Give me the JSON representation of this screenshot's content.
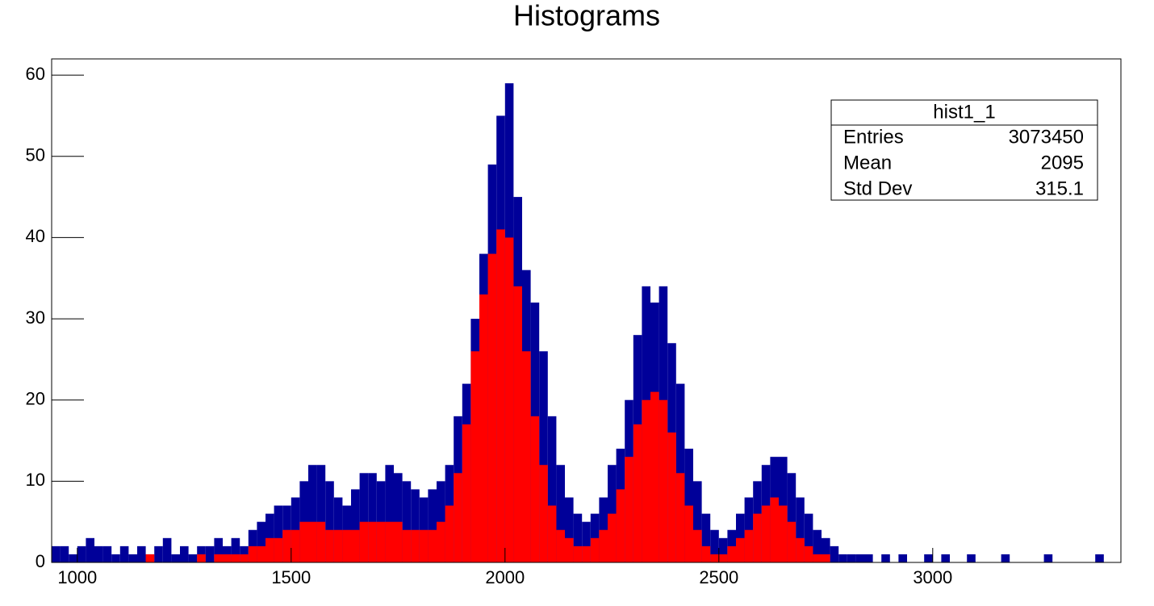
{
  "chart_data": {
    "type": "histogram",
    "title": "Histograms",
    "bins": [
      940,
      960,
      980,
      1000,
      1020,
      1040,
      1060,
      1080,
      1100,
      1120,
      1140,
      1160,
      1180,
      1200,
      1220,
      1240,
      1260,
      1280,
      1300,
      1320,
      1340,
      1360,
      1380,
      1400,
      1420,
      1440,
      1460,
      1480,
      1500,
      1520,
      1540,
      1560,
      1580,
      1600,
      1620,
      1640,
      1660,
      1680,
      1700,
      1720,
      1740,
      1760,
      1780,
      1800,
      1820,
      1840,
      1860,
      1880,
      1900,
      1920,
      1940,
      1960,
      1980,
      2000,
      2020,
      2040,
      2060,
      2080,
      2100,
      2120,
      2140,
      2160,
      2180,
      2200,
      2220,
      2240,
      2260,
      2280,
      2300,
      2320,
      2340,
      2360,
      2380,
      2400,
      2420,
      2440,
      2460,
      2480,
      2500,
      2520,
      2540,
      2560,
      2580,
      2600,
      2620,
      2640,
      2660,
      2680,
      2700,
      2720,
      2740,
      2760,
      2780,
      2800,
      2820,
      2840,
      2860,
      2880,
      2900,
      2920,
      2940,
      2960,
      2980,
      3000,
      3020,
      3040,
      3060,
      3080,
      3100,
      3120,
      3140,
      3160,
      3180,
      3200,
      3220,
      3240,
      3260,
      3280,
      3300,
      3320,
      3340,
      3360,
      3380,
      3400,
      3420,
      3440
    ],
    "series": [
      {
        "color": "#000099",
        "values": [
          2,
          2,
          1,
          2,
          3,
          2,
          2,
          1,
          2,
          1,
          2,
          1,
          2,
          3,
          1,
          2,
          1,
          2,
          2,
          3,
          2,
          3,
          2,
          4,
          5,
          6,
          7,
          7,
          8,
          10,
          12,
          12,
          10,
          8,
          7,
          9,
          11,
          11,
          10,
          12,
          11,
          10,
          9,
          8,
          9,
          10,
          12,
          18,
          22,
          30,
          38,
          49,
          55,
          59,
          45,
          36,
          32,
          26,
          18,
          12,
          8,
          6,
          5,
          6,
          8,
          12,
          14,
          20,
          28,
          34,
          32,
          34,
          27,
          22,
          14,
          10,
          6,
          4,
          3,
          4,
          6,
          8,
          10,
          12,
          13,
          13,
          11,
          8,
          6,
          4,
          3,
          2,
          1,
          1,
          1,
          1,
          0,
          1,
          0,
          1,
          0,
          0,
          1,
          0,
          1,
          0,
          0,
          1,
          0,
          0,
          0,
          1,
          0,
          0,
          0,
          0,
          1,
          0,
          0,
          0,
          0,
          0,
          1,
          0,
          0
        ]
      },
      {
        "color": "#ff0000",
        "values": [
          0,
          0,
          0,
          0,
          0,
          0,
          0,
          0,
          0,
          0,
          0,
          1,
          0,
          0,
          0,
          0,
          0,
          1,
          0,
          1,
          1,
          1,
          1,
          2,
          2,
          3,
          3,
          4,
          4,
          5,
          5,
          5,
          4,
          4,
          4,
          4,
          5,
          5,
          5,
          5,
          5,
          4,
          4,
          4,
          4,
          5,
          7,
          11,
          17,
          26,
          33,
          38,
          41,
          40,
          34,
          26,
          18,
          12,
          7,
          4,
          3,
          2,
          2,
          3,
          4,
          6,
          9,
          13,
          17,
          20,
          21,
          20,
          16,
          11,
          7,
          4,
          2,
          1,
          1,
          2,
          3,
          4,
          6,
          7,
          8,
          7,
          5,
          3,
          2,
          1,
          1,
          0,
          0,
          0,
          0,
          0,
          0,
          0,
          0,
          0,
          0,
          0,
          0,
          0,
          0,
          0,
          0,
          0,
          0,
          0,
          0,
          0,
          0,
          0,
          0,
          0,
          0,
          0,
          0,
          0,
          0,
          0,
          0,
          0,
          0
        ]
      }
    ],
    "xlim": [
      940,
      3440
    ],
    "ylim": [
      0,
      62
    ],
    "xticks": [
      1000,
      1500,
      2000,
      2500,
      3000
    ],
    "yticks": [
      0,
      10,
      20,
      30,
      40,
      50,
      60
    ],
    "stats": {
      "title": "hist1_1",
      "rows": [
        [
          "Entries",
          "3073450"
        ],
        [
          "Mean",
          "2095"
        ],
        [
          "Std Dev",
          "315.1"
        ]
      ]
    }
  }
}
